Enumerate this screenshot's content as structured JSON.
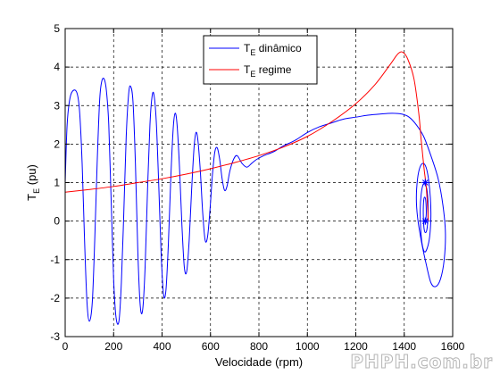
{
  "watermark": "PHPH.com.br",
  "chart_data": {
    "type": "line",
    "title": "",
    "xlabel": "Velocidade (rpm)",
    "ylabel": {
      "main": "T",
      "sub": "E",
      "suffix": " (pu)"
    },
    "xlim": [
      0,
      1600
    ],
    "ylim": [
      -3,
      5
    ],
    "xticks": [
      0,
      200,
      400,
      600,
      800,
      1000,
      1200,
      1400,
      1600
    ],
    "yticks": [
      -3,
      -2,
      -1,
      0,
      1,
      2,
      3,
      4,
      5
    ],
    "grid": true,
    "grid_style": "dashed",
    "legend_position": "top-center",
    "series": [
      {
        "name": {
          "main": "T",
          "sub": "E",
          "suffix": " dinâmico"
        },
        "color": "#0000ff",
        "points": [
          [
            0,
            1
          ],
          [
            8,
            2.5
          ],
          [
            20,
            3.2
          ],
          [
            35,
            3.4
          ],
          [
            50,
            3.3
          ],
          [
            60,
            2.8
          ],
          [
            70,
            1.5
          ],
          [
            80,
            -0.5
          ],
          [
            90,
            -2.1
          ],
          [
            100,
            -2.6
          ],
          [
            112,
            -2.1
          ],
          [
            122,
            -0.5
          ],
          [
            132,
            1.5
          ],
          [
            142,
            3.1
          ],
          [
            150,
            3.6
          ],
          [
            160,
            3.7
          ],
          [
            170,
            3.4
          ],
          [
            180,
            2.5
          ],
          [
            190,
            0.5
          ],
          [
            200,
            -1.5
          ],
          [
            210,
            -2.5
          ],
          [
            222,
            -2.6
          ],
          [
            232,
            -1.6
          ],
          [
            242,
            0.2
          ],
          [
            252,
            2.2
          ],
          [
            262,
            3.3
          ],
          [
            270,
            3.5
          ],
          [
            280,
            3.1
          ],
          [
            290,
            1.5
          ],
          [
            300,
            -0.8
          ],
          [
            310,
            -2.2
          ],
          [
            320,
            -2.3
          ],
          [
            330,
            -1.2
          ],
          [
            340,
            0.8
          ],
          [
            350,
            2.5
          ],
          [
            358,
            3.2
          ],
          [
            366,
            3.3
          ],
          [
            376,
            2.6
          ],
          [
            386,
            1
          ],
          [
            396,
            -0.8
          ],
          [
            406,
            -1.9
          ],
          [
            416,
            -1.8
          ],
          [
            426,
            -0.6
          ],
          [
            436,
            1.1
          ],
          [
            446,
            2.4
          ],
          [
            454,
            2.8
          ],
          [
            462,
            2.5
          ],
          [
            472,
            1.4
          ],
          [
            482,
            -0.1
          ],
          [
            492,
            -1.2
          ],
          [
            502,
            -1.3
          ],
          [
            512,
            -0.5
          ],
          [
            522,
            0.8
          ],
          [
            532,
            1.9
          ],
          [
            540,
            2.3
          ],
          [
            548,
            2.1
          ],
          [
            558,
            1.3
          ],
          [
            568,
            0.2
          ],
          [
            578,
            -0.5
          ],
          [
            588,
            -0.4
          ],
          [
            598,
            0.3
          ],
          [
            608,
            1.2
          ],
          [
            618,
            1.8
          ],
          [
            628,
            1.9
          ],
          [
            638,
            1.6
          ],
          [
            648,
            1.1
          ],
          [
            658,
            0.8
          ],
          [
            668,
            0.9
          ],
          [
            680,
            1.3
          ],
          [
            695,
            1.6
          ],
          [
            710,
            1.7
          ],
          [
            730,
            1.5
          ],
          [
            750,
            1.4
          ],
          [
            770,
            1.5
          ],
          [
            790,
            1.6
          ],
          [
            820,
            1.7
          ],
          [
            860,
            1.8
          ],
          [
            900,
            1.95
          ],
          [
            950,
            2.1
          ],
          [
            1000,
            2.3
          ],
          [
            1050,
            2.45
          ],
          [
            1100,
            2.55
          ],
          [
            1150,
            2.65
          ],
          [
            1200,
            2.7
          ],
          [
            1250,
            2.75
          ],
          [
            1300,
            2.78
          ],
          [
            1350,
            2.8
          ],
          [
            1390,
            2.78
          ],
          [
            1420,
            2.7
          ],
          [
            1450,
            2.5
          ],
          [
            1480,
            2.2
          ],
          [
            1510,
            1.7
          ],
          [
            1540,
            1.1
          ],
          [
            1560,
            0.4
          ],
          [
            1570,
            -0.3
          ],
          [
            1565,
            -1
          ],
          [
            1550,
            -1.5
          ],
          [
            1530,
            -1.7
          ],
          [
            1510,
            -1.6
          ],
          [
            1490,
            -1.1
          ],
          [
            1470,
            -0.5
          ],
          [
            1455,
            0.1
          ],
          [
            1450,
            0.6
          ],
          [
            1455,
            1.1
          ],
          [
            1465,
            1.4
          ],
          [
            1478,
            1.5
          ],
          [
            1490,
            1.4
          ],
          [
            1500,
            1.1
          ],
          [
            1508,
            0.6
          ],
          [
            1510,
            0.1
          ],
          [
            1505,
            -0.4
          ],
          [
            1495,
            -0.7
          ],
          [
            1484,
            -0.8
          ],
          [
            1474,
            -0.6
          ],
          [
            1468,
            -0.2
          ],
          [
            1466,
            0.3
          ],
          [
            1470,
            0.7
          ],
          [
            1478,
            0.95
          ],
          [
            1487,
            0.95
          ],
          [
            1494,
            0.8
          ],
          [
            1498,
            0.5
          ],
          [
            1498,
            0.1
          ],
          [
            1494,
            -0.2
          ],
          [
            1488,
            -0.3
          ],
          [
            1482,
            -0.2
          ],
          [
            1479,
            0.1
          ],
          [
            1479,
            0.4
          ],
          [
            1482,
            0.6
          ],
          [
            1487,
            0.6
          ],
          [
            1490,
            0.45
          ],
          [
            1491,
            0.2
          ],
          [
            1489,
            0.05
          ],
          [
            1487,
            0
          ]
        ]
      },
      {
        "name": {
          "main": "T",
          "sub": "E",
          "suffix": " regime"
        },
        "color": "#ff0000",
        "points": [
          [
            0,
            0.75
          ],
          [
            100,
            0.82
          ],
          [
            200,
            0.9
          ],
          [
            300,
            1.0
          ],
          [
            400,
            1.1
          ],
          [
            500,
            1.22
          ],
          [
            600,
            1.36
          ],
          [
            700,
            1.52
          ],
          [
            800,
            1.7
          ],
          [
            900,
            1.92
          ],
          [
            1000,
            2.2
          ],
          [
            1100,
            2.58
          ],
          [
            1200,
            3.05
          ],
          [
            1280,
            3.55
          ],
          [
            1340,
            4.05
          ],
          [
            1375,
            4.35
          ],
          [
            1395,
            4.38
          ],
          [
            1415,
            4.2
          ],
          [
            1440,
            3.7
          ],
          [
            1460,
            2.8
          ],
          [
            1470,
            2.1
          ],
          [
            1478,
            1.6
          ],
          [
            1483,
            1.3
          ],
          [
            1488,
            1.05
          ],
          [
            1493,
            0.7
          ],
          [
            1497,
            0.3
          ],
          [
            1499,
            0.05
          ],
          [
            1500,
            0
          ]
        ]
      }
    ],
    "markers": [
      {
        "x": 1487,
        "y": 1.0,
        "series": 0,
        "shape": "star"
      },
      {
        "x": 1487,
        "y": 0,
        "series": 0,
        "shape": "star"
      }
    ]
  }
}
